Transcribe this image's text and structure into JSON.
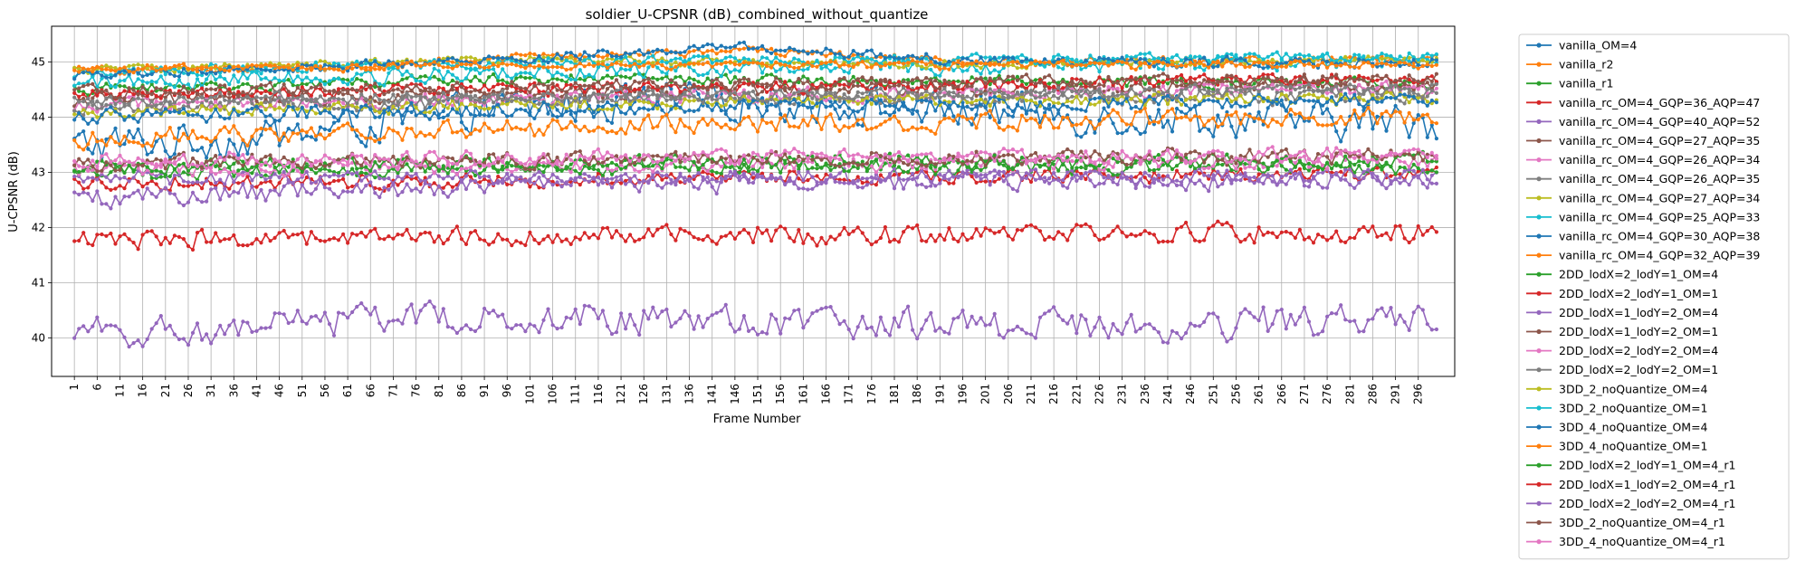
{
  "chart_data": {
    "type": "line",
    "title": "soldier_U-CPSNR (dB)_combined_without_quantize",
    "xlabel": "Frame Number",
    "ylabel": "U-CPSNR (dB)",
    "xlim": [
      -4,
      304
    ],
    "ylim": [
      39.3,
      45.65
    ],
    "yticks": [
      40,
      41,
      42,
      43,
      44,
      45
    ],
    "xticks": [
      1,
      6,
      11,
      16,
      21,
      26,
      31,
      36,
      41,
      46,
      51,
      56,
      61,
      66,
      71,
      76,
      81,
      86,
      91,
      96,
      101,
      106,
      111,
      116,
      121,
      126,
      131,
      136,
      141,
      146,
      151,
      156,
      161,
      166,
      171,
      176,
      181,
      186,
      191,
      196,
      201,
      206,
      211,
      216,
      221,
      226,
      231,
      236,
      241,
      246,
      251,
      256,
      261,
      266,
      271,
      276,
      281,
      286,
      291,
      296
    ],
    "grid": true,
    "legend_position": "outside-right",
    "x": {
      "start": 1,
      "end": 300,
      "step": 1
    },
    "series": [
      {
        "name": "vanilla_OM=4",
        "color": "#1f77b4",
        "base": 44.0,
        "amp": 0.3,
        "noise": 0.05,
        "trend": [
          [
            1,
            43.5
          ],
          [
            40,
            43.6
          ],
          [
            100,
            44.2
          ],
          [
            150,
            44.3
          ],
          [
            230,
            44.0
          ],
          [
            300,
            43.9
          ]
        ]
      },
      {
        "name": "vanilla_r2",
        "color": "#ff7f0e",
        "base": 44.9,
        "amp": 0.06,
        "noise": 0.03,
        "trend": [
          [
            1,
            44.85
          ],
          [
            60,
            44.9
          ],
          [
            100,
            45.1
          ],
          [
            150,
            45.2
          ],
          [
            200,
            45.0
          ],
          [
            300,
            45.05
          ]
        ]
      },
      {
        "name": "vanilla_r1",
        "color": "#2ca02c",
        "base": 44.6,
        "amp": 0.08,
        "noise": 0.04,
        "trend": [
          [
            1,
            44.5
          ],
          [
            100,
            44.7
          ],
          [
            300,
            44.6
          ]
        ]
      },
      {
        "name": "vanilla_rc_OM=4_GQP=36_AQP=47",
        "color": "#d62728",
        "base": 42.85,
        "amp": 0.12,
        "noise": 0.05,
        "trend": [
          [
            1,
            42.8
          ],
          [
            150,
            42.9
          ],
          [
            300,
            43.0
          ]
        ]
      },
      {
        "name": "vanilla_rc_OM=4_GQP=40_AQP=52",
        "color": "#9467bd",
        "base": 42.7,
        "amp": 0.15,
        "noise": 0.06,
        "trend": [
          [
            1,
            42.5
          ],
          [
            100,
            42.8
          ],
          [
            300,
            42.9
          ]
        ]
      },
      {
        "name": "vanilla_rc_OM=4_GQP=27_AQP=35",
        "color": "#8c564b",
        "base": 44.4,
        "amp": 0.12,
        "noise": 0.04,
        "trend": [
          [
            1,
            44.3
          ],
          [
            150,
            44.5
          ],
          [
            300,
            44.6
          ]
        ]
      },
      {
        "name": "vanilla_rc_OM=4_GQP=26_AQP=34",
        "color": "#e377c2",
        "base": 44.3,
        "amp": 0.12,
        "noise": 0.04,
        "trend": [
          [
            1,
            44.2
          ],
          [
            150,
            44.4
          ],
          [
            300,
            44.5
          ]
        ]
      },
      {
        "name": "vanilla_rc_OM=4_GQP=26_AQP=35",
        "color": "#7f7f7f",
        "base": 44.25,
        "amp": 0.12,
        "noise": 0.04,
        "trend": [
          [
            1,
            44.2
          ],
          [
            150,
            44.35
          ],
          [
            300,
            44.4
          ]
        ]
      },
      {
        "name": "vanilla_rc_OM=4_GQP=27_AQP=34",
        "color": "#bcbd22",
        "base": 44.2,
        "amp": 0.1,
        "noise": 0.04,
        "trend": [
          [
            1,
            44.1
          ],
          [
            150,
            44.3
          ],
          [
            300,
            44.35
          ]
        ]
      },
      {
        "name": "vanilla_rc_OM=4_GQP=25_AQP=33",
        "color": "#17becf",
        "base": 44.7,
        "amp": 0.12,
        "noise": 0.05,
        "trend": [
          [
            1,
            44.6
          ],
          [
            150,
            44.9
          ],
          [
            300,
            45.0
          ]
        ]
      },
      {
        "name": "vanilla_rc_OM=4_GQP=30_AQP=38",
        "color": "#1f77b4",
        "base": 44.1,
        "amp": 0.12,
        "noise": 0.05,
        "trend": [
          [
            1,
            44.0
          ],
          [
            150,
            44.2
          ],
          [
            300,
            44.3
          ]
        ]
      },
      {
        "name": "vanilla_rc_OM=4_GQP=32_AQP=39",
        "color": "#ff7f0e",
        "base": 43.8,
        "amp": 0.15,
        "noise": 0.05,
        "trend": [
          [
            1,
            43.6
          ],
          [
            150,
            43.9
          ],
          [
            300,
            44.0
          ]
        ]
      },
      {
        "name": "2DD_lodX=2_lodY=1_OM=4",
        "color": "#2ca02c",
        "base": 43.05,
        "amp": 0.12,
        "noise": 0.05,
        "trend": [
          [
            1,
            43.0
          ],
          [
            150,
            43.1
          ],
          [
            300,
            43.1
          ]
        ]
      },
      {
        "name": "2DD_lodX=2_lodY=1_OM=1",
        "color": "#d62728",
        "base": 44.5,
        "amp": 0.1,
        "noise": 0.04,
        "trend": [
          [
            1,
            44.4
          ],
          [
            150,
            44.55
          ],
          [
            300,
            44.7
          ]
        ]
      },
      {
        "name": "2DD_lodX=1_lodY=2_OM=4",
        "color": "#9467bd",
        "base": 42.85,
        "amp": 0.12,
        "noise": 0.05,
        "trend": [
          [
            1,
            42.9
          ],
          [
            150,
            42.9
          ],
          [
            300,
            42.95
          ]
        ]
      },
      {
        "name": "2DD_lodX=1_lodY=2_OM=1",
        "color": "#8c564b",
        "base": 44.55,
        "amp": 0.1,
        "noise": 0.04,
        "trend": [
          [
            1,
            44.45
          ],
          [
            150,
            44.6
          ],
          [
            300,
            44.7
          ]
        ]
      },
      {
        "name": "2DD_lodX=2_lodY=2_OM=4",
        "color": "#e377c2",
        "base": 43.1,
        "amp": 0.12,
        "noise": 0.05,
        "trend": [
          [
            1,
            43.05
          ],
          [
            150,
            43.15
          ],
          [
            300,
            43.2
          ]
        ]
      },
      {
        "name": "2DD_lodX=2_lodY=2_OM=1",
        "color": "#7f7f7f",
        "base": 44.35,
        "amp": 0.1,
        "noise": 0.04,
        "trend": [
          [
            1,
            44.3
          ],
          [
            150,
            44.4
          ],
          [
            300,
            44.5
          ]
        ]
      },
      {
        "name": "3DD_2_noQuantize_OM=4",
        "color": "#bcbd22",
        "base": 44.85,
        "amp": 0.06,
        "noise": 0.03,
        "trend": [
          [
            1,
            44.85
          ],
          [
            100,
            45.05
          ],
          [
            200,
            44.95
          ],
          [
            300,
            45.05
          ]
        ]
      },
      {
        "name": "3DD_2_noQuantize_OM=1",
        "color": "#17becf",
        "base": 44.9,
        "amp": 0.08,
        "noise": 0.03,
        "trend": [
          [
            1,
            44.8
          ],
          [
            100,
            45.0
          ],
          [
            300,
            45.1
          ]
        ]
      },
      {
        "name": "3DD_4_noQuantize_OM=4",
        "color": "#1f77b4",
        "base": 44.85,
        "amp": 0.08,
        "noise": 0.03,
        "trend": [
          [
            1,
            44.75
          ],
          [
            100,
            45.05
          ],
          [
            145,
            45.3
          ],
          [
            200,
            45.0
          ],
          [
            300,
            45.0
          ]
        ]
      },
      {
        "name": "3DD_4_noQuantize_OM=1",
        "color": "#ff7f0e",
        "base": 44.85,
        "amp": 0.06,
        "noise": 0.03,
        "trend": [
          [
            1,
            44.9
          ],
          [
            150,
            44.95
          ],
          [
            300,
            44.95
          ]
        ]
      },
      {
        "name": "2DD_lodX=2_lodY=1_OM=4_r1",
        "color": "#2ca02c",
        "base": 43.15,
        "amp": 0.12,
        "noise": 0.05,
        "trend": [
          [
            1,
            43.1
          ],
          [
            150,
            43.2
          ],
          [
            300,
            43.2
          ]
        ]
      },
      {
        "name": "2DD_lodX=1_lodY=2_OM=4_r1",
        "color": "#d62728",
        "base": 41.85,
        "amp": 0.15,
        "noise": 0.06,
        "trend": [
          [
            1,
            41.8
          ],
          [
            150,
            41.85
          ],
          [
            300,
            41.9
          ]
        ]
      },
      {
        "name": "2DD_lodX=2_lodY=2_OM=4_r1",
        "color": "#9467bd",
        "base": 40.3,
        "amp": 0.25,
        "noise": 0.08,
        "trend": [
          [
            1,
            40.1
          ],
          [
            100,
            40.4
          ],
          [
            200,
            40.2
          ],
          [
            300,
            40.3
          ]
        ]
      },
      {
        "name": "3DD_2_noQuantize_OM=4_r1",
        "color": "#8c564b",
        "base": 43.2,
        "amp": 0.12,
        "noise": 0.05,
        "trend": [
          [
            1,
            43.15
          ],
          [
            150,
            43.25
          ],
          [
            300,
            43.3
          ]
        ]
      },
      {
        "name": "3DD_4_noQuantize_OM=4_r1",
        "color": "#e377c2",
        "base": 43.25,
        "amp": 0.12,
        "noise": 0.05,
        "trend": [
          [
            1,
            43.2
          ],
          [
            150,
            43.3
          ],
          [
            300,
            43.3
          ]
        ]
      }
    ]
  }
}
